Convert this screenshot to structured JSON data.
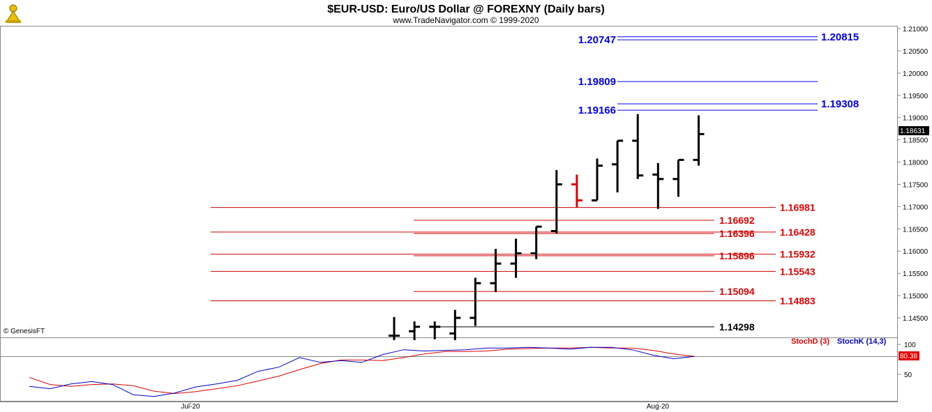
{
  "header": {
    "title": "$EUR-USD:  Euro/US Dollar @ FOREXNY  (Daily bars)",
    "subtitle": "www.TradeNavigator.com © 1999-2020"
  },
  "footer": {
    "copyright": "© GenesisFT"
  },
  "chart_data": [
    {
      "type": "ohlc",
      "ylim": [
        1.14,
        1.2115
      ],
      "y_ticks": [
        "1.21000",
        "1.20500",
        "1.20000",
        "1.19500",
        "1.19000",
        "1.18500",
        "1.18000",
        "1.17500",
        "1.17000",
        "1.16500",
        "1.16000",
        "1.15500",
        "1.15000",
        "1.14500"
      ],
      "last_price": "1.18631",
      "bars": [
        {
          "o": 1.141,
          "h": 1.1452,
          "l": 1.14,
          "c": 1.141,
          "color": "black"
        },
        {
          "o": 1.142,
          "h": 1.1442,
          "l": 1.14,
          "c": 1.143,
          "color": "black"
        },
        {
          "o": 1.143,
          "h": 1.1442,
          "l": 1.1402,
          "c": 1.143,
          "color": "black"
        },
        {
          "o": 1.1415,
          "h": 1.1468,
          "l": 1.14,
          "c": 1.145,
          "color": "black"
        },
        {
          "o": 1.145,
          "h": 1.154,
          "l": 1.1432,
          "c": 1.1528,
          "color": "black"
        },
        {
          "o": 1.1528,
          "h": 1.1605,
          "l": 1.1508,
          "c": 1.1572,
          "color": "black"
        },
        {
          "o": 1.1572,
          "h": 1.1628,
          "l": 1.154,
          "c": 1.1595,
          "color": "black"
        },
        {
          "o": 1.1595,
          "h": 1.1655,
          "l": 1.1582,
          "c": 1.1655,
          "color": "black"
        },
        {
          "o": 1.1645,
          "h": 1.1782,
          "l": 1.164,
          "c": 1.175,
          "color": "black"
        },
        {
          "o": 1.175,
          "h": 1.1772,
          "l": 1.1698,
          "c": 1.1714,
          "color": "red"
        },
        {
          "o": 1.1714,
          "h": 1.1808,
          "l": 1.1714,
          "c": 1.1792,
          "color": "black"
        },
        {
          "o": 1.1795,
          "h": 1.1848,
          "l": 1.1732,
          "c": 1.1848,
          "color": "black"
        },
        {
          "o": 1.1848,
          "h": 1.1908,
          "l": 1.1762,
          "c": 1.177,
          "color": "black"
        },
        {
          "o": 1.1772,
          "h": 1.1798,
          "l": 1.1695,
          "c": 1.1762,
          "color": "black"
        },
        {
          "o": 1.1762,
          "h": 1.1805,
          "l": 1.1722,
          "c": 1.1805,
          "color": "black"
        },
        {
          "o": 1.1805,
          "h": 1.1905,
          "l": 1.1792,
          "c": 1.1863,
          "color": "black"
        }
      ],
      "levels": [
        {
          "label": "1.20747",
          "value": 1.20747,
          "color": "blue",
          "side": "left",
          "line_from": 0.62
        },
        {
          "label": "1.20815",
          "value": 1.20815,
          "color": "blue",
          "side": "right",
          "line_from": 0.62
        },
        {
          "label": "1.19809",
          "value": 1.19809,
          "color": "blue",
          "side": "left",
          "line_from": 0.62
        },
        {
          "label": "1.19308",
          "value": 1.19308,
          "color": "blue",
          "side": "right",
          "line_from": 0.62
        },
        {
          "label": "1.19166",
          "value": 1.19166,
          "color": "blue",
          "side": "left",
          "line_from": 0.62
        },
        {
          "label": "1.16981",
          "value": 1.16981,
          "color": "red",
          "side": "far",
          "line_from": 0.0
        },
        {
          "label": "1.16692",
          "value": 1.16692,
          "color": "red",
          "side": "near",
          "line_from": 0.5
        },
        {
          "label": "1.16396",
          "value": 1.16396,
          "color": "red",
          "side": "near",
          "line_from": 0.5
        },
        {
          "label": "1.16428",
          "value": 1.16428,
          "color": "red",
          "side": "far",
          "line_from": 0.0
        },
        {
          "label": "1.15896",
          "value": 1.15896,
          "color": "red",
          "side": "near",
          "line_from": 0.5
        },
        {
          "label": "1.15932",
          "value": 1.15932,
          "color": "red",
          "side": "far",
          "line_from": 0.0
        },
        {
          "label": "1.15543",
          "value": 1.15543,
          "color": "red",
          "side": "far",
          "line_from": 0.0
        },
        {
          "label": "1.15094",
          "value": 1.15094,
          "color": "red",
          "side": "near",
          "line_from": 0.5
        },
        {
          "label": "1.14883",
          "value": 1.14883,
          "color": "red",
          "side": "far",
          "line_from": 0.0
        },
        {
          "label": "1.14298",
          "value": 1.14298,
          "color": "black",
          "side": "near",
          "line_from": 0.57
        }
      ]
    },
    {
      "type": "line",
      "ylim": [
        0,
        100
      ],
      "y_ticks": [
        "100",
        "50"
      ],
      "x_labels": [
        "Jul-20",
        "Aug-20"
      ],
      "last_value": "80.38",
      "series": [
        {
          "name": "StochD (3)",
          "color": "#e00000",
          "values": [
            45,
            33,
            30,
            33,
            34,
            31,
            22,
            18,
            21,
            26,
            31,
            39,
            47,
            58,
            68,
            74,
            74,
            73,
            78,
            84,
            88,
            88,
            89,
            92,
            93,
            94,
            94,
            95,
            94,
            94,
            90,
            84,
            80
          ]
        },
        {
          "name": "StochK (14,3)",
          "color": "#0000cc",
          "values": [
            30,
            26,
            34,
            38,
            33,
            16,
            13,
            19,
            29,
            34,
            40,
            55,
            62,
            78,
            70,
            73,
            70,
            83,
            91,
            89,
            90,
            91,
            94,
            94,
            95,
            94,
            92,
            95,
            95,
            91,
            82,
            76,
            80
          ]
        }
      ]
    }
  ]
}
